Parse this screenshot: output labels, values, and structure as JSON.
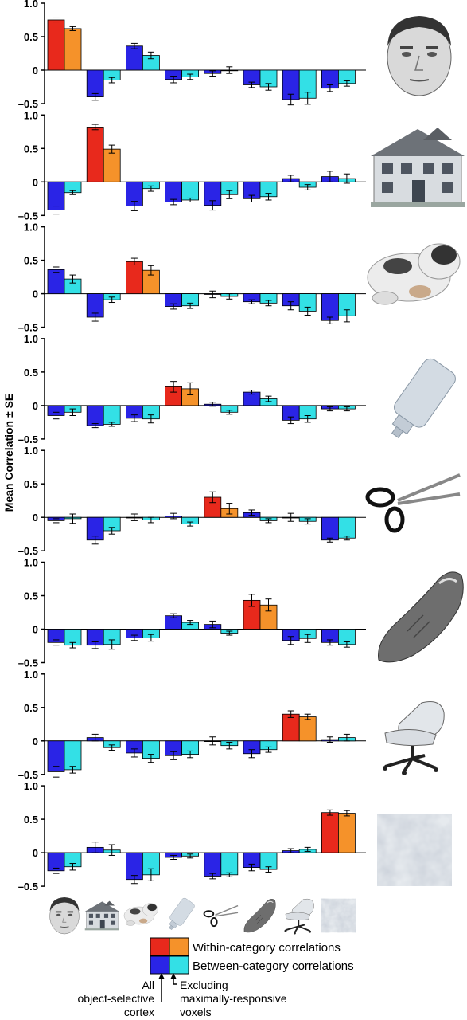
{
  "figure": {
    "ylabel": "Mean Correlation ± SE",
    "legend": {
      "within": "Within-category correlations",
      "between": "Between-category correlations",
      "all_label": [
        "All",
        "object-selective",
        "cortex"
      ],
      "excl_label": [
        "Excluding",
        "maximally-responsive",
        "voxels"
      ]
    },
    "colors": {
      "within_all": "#e8291c",
      "within_excl": "#f5922a",
      "between_all": "#2a24e6",
      "between_excl": "#33e0e6"
    },
    "categories": [
      "face",
      "house",
      "cat",
      "bottle",
      "scissors",
      "shoe",
      "chair",
      "scrambled"
    ],
    "icons": [
      "face-icon",
      "house-icon",
      "cat-icon",
      "bottle-icon",
      "scissors-icon",
      "shoe-icon",
      "chair-icon",
      "scrambled-icon"
    ]
  },
  "chart_data": [
    {
      "type": "bar",
      "panel": "face",
      "ylim": [
        -0.5,
        1.0
      ],
      "yticks": [
        "1.0",
        "0.5",
        "0",
        "–0.5"
      ],
      "series": [
        {
          "values": [
            0.75,
            -0.4,
            0.36,
            -0.14,
            -0.05,
            -0.22,
            -0.44,
            -0.27
          ],
          "errors": [
            0.03,
            0.05,
            0.04,
            0.05,
            0.04,
            0.04,
            0.08,
            0.05
          ]
        },
        {
          "values": [
            0.62,
            -0.15,
            0.22,
            -0.1,
            0.0,
            -0.25,
            -0.42,
            -0.2
          ],
          "errors": [
            0.03,
            0.04,
            0.05,
            0.04,
            0.05,
            0.05,
            0.09,
            0.04
          ]
        }
      ]
    },
    {
      "type": "bar",
      "panel": "house",
      "ylim": [
        -0.5,
        1.0
      ],
      "yticks": [
        "1.0",
        "0.5",
        "0",
        "–0.5"
      ],
      "series": [
        {
          "values": [
            -0.42,
            0.82,
            -0.36,
            -0.3,
            -0.35,
            -0.25,
            0.05,
            0.08
          ],
          "errors": [
            0.06,
            0.04,
            0.07,
            0.04,
            0.07,
            0.05,
            0.05,
            0.08
          ]
        },
        {
          "values": [
            -0.16,
            0.49,
            -0.1,
            -0.27,
            -0.19,
            -0.22,
            -0.08,
            0.05
          ],
          "errors": [
            0.03,
            0.06,
            0.04,
            0.03,
            0.06,
            0.05,
            0.04,
            0.07
          ]
        }
      ]
    },
    {
      "type": "bar",
      "panel": "cat",
      "ylim": [
        -0.5,
        1.0
      ],
      "yticks": [
        "1.0",
        "0.5",
        "0",
        "–0.5"
      ],
      "series": [
        {
          "values": [
            0.36,
            -0.35,
            0.48,
            -0.19,
            -0.01,
            -0.12,
            -0.18,
            -0.4
          ],
          "errors": [
            0.04,
            0.06,
            0.05,
            0.04,
            0.05,
            0.03,
            0.06,
            0.05
          ]
        },
        {
          "values": [
            0.22,
            -0.09,
            0.35,
            -0.18,
            -0.04,
            -0.14,
            -0.26,
            -0.33
          ],
          "errors": [
            0.06,
            0.04,
            0.07,
            0.04,
            0.04,
            0.04,
            0.06,
            0.09
          ]
        }
      ]
    },
    {
      "type": "bar",
      "panel": "bottle",
      "ylim": [
        -0.5,
        1.0
      ],
      "yticks": [
        "1.0",
        "0.5",
        "0",
        "–0.5"
      ],
      "series": [
        {
          "values": [
            -0.15,
            -0.3,
            -0.19,
            0.28,
            0.02,
            0.2,
            -0.22,
            -0.05
          ],
          "errors": [
            0.05,
            0.03,
            0.05,
            0.08,
            0.03,
            0.03,
            0.05,
            0.03
          ]
        },
        {
          "values": [
            -0.1,
            -0.28,
            -0.2,
            0.25,
            -0.1,
            0.1,
            -0.2,
            -0.05
          ],
          "errors": [
            0.05,
            0.03,
            0.06,
            0.09,
            0.03,
            0.04,
            0.05,
            0.03
          ]
        }
      ]
    },
    {
      "type": "bar",
      "panel": "scissors",
      "ylim": [
        -0.5,
        1.0
      ],
      "yticks": [
        "1.0",
        "0.5",
        "0",
        "–0.5"
      ],
      "series": [
        {
          "values": [
            -0.05,
            -0.34,
            0.0,
            0.02,
            0.3,
            0.07,
            0.0,
            -0.34
          ],
          "errors": [
            0.03,
            0.06,
            0.05,
            0.04,
            0.08,
            0.04,
            0.06,
            0.03
          ]
        },
        {
          "values": [
            -0.02,
            -0.2,
            -0.04,
            -0.1,
            0.13,
            -0.05,
            -0.06,
            -0.31
          ],
          "errors": [
            0.07,
            0.05,
            0.04,
            0.03,
            0.08,
            0.03,
            0.04,
            0.03
          ]
        }
      ]
    },
    {
      "type": "bar",
      "panel": "shoe",
      "ylim": [
        -0.5,
        1.0
      ],
      "yticks": [
        "1.0",
        "0.5",
        "0",
        "–0.5"
      ],
      "series": [
        {
          "values": [
            -0.2,
            -0.24,
            -0.13,
            0.2,
            0.07,
            0.43,
            -0.17,
            -0.2
          ],
          "errors": [
            0.04,
            0.05,
            0.04,
            0.03,
            0.05,
            0.09,
            0.06,
            0.04
          ]
        },
        {
          "values": [
            -0.24,
            -0.23,
            -0.13,
            0.1,
            -0.06,
            0.36,
            -0.14,
            -0.23
          ],
          "errors": [
            0.04,
            0.07,
            0.05,
            0.03,
            0.03,
            0.09,
            0.06,
            0.04
          ]
        }
      ]
    },
    {
      "type": "bar",
      "panel": "chair",
      "ylim": [
        -0.5,
        1.0
      ],
      "yticks": [
        "1.0",
        "0.5",
        "0",
        "–0.5"
      ],
      "series": [
        {
          "values": [
            -0.46,
            0.05,
            -0.18,
            -0.22,
            0.0,
            -0.19,
            0.4,
            0.02
          ],
          "errors": [
            0.08,
            0.05,
            0.06,
            0.06,
            0.06,
            0.06,
            0.05,
            0.04
          ]
        },
        {
          "values": [
            -0.43,
            -0.1,
            -0.26,
            -0.2,
            -0.07,
            -0.13,
            0.36,
            0.05
          ],
          "errors": [
            0.05,
            0.04,
            0.06,
            0.05,
            0.05,
            0.04,
            0.04,
            0.05
          ]
        }
      ]
    },
    {
      "type": "bar",
      "panel": "scrambled",
      "ylim": [
        -0.5,
        1.0
      ],
      "yticks": [
        "1.0",
        "0.5",
        "0",
        "–0.5"
      ],
      "series": [
        {
          "values": [
            -0.27,
            0.08,
            -0.4,
            -0.07,
            -0.35,
            -0.22,
            0.03,
            0.6
          ],
          "errors": [
            0.04,
            0.08,
            0.06,
            0.03,
            0.04,
            0.05,
            0.03,
            0.04
          ]
        },
        {
          "values": [
            -0.21,
            0.04,
            -0.33,
            -0.05,
            -0.33,
            -0.25,
            0.05,
            0.59
          ],
          "errors": [
            0.05,
            0.08,
            0.09,
            0.03,
            0.03,
            0.04,
            0.03,
            0.04
          ]
        }
      ]
    }
  ]
}
